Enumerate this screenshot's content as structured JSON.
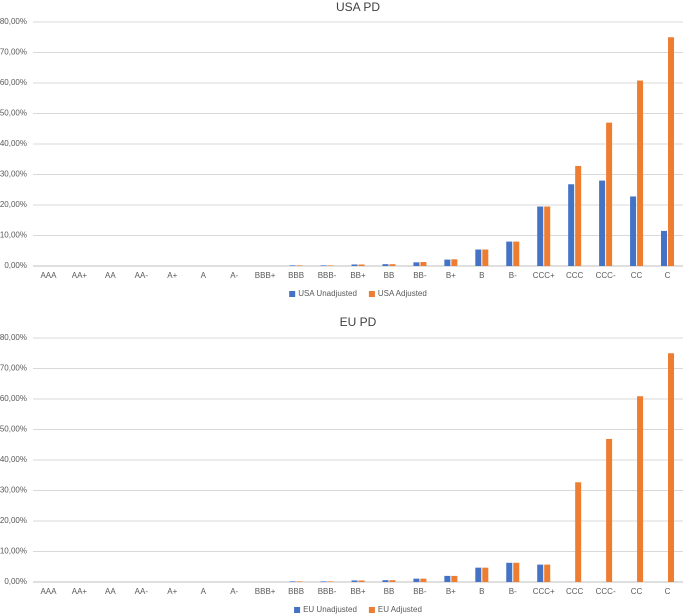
{
  "chart_data": [
    {
      "type": "bar",
      "title": "USA PD",
      "categories": [
        "AAA",
        "AA+",
        "AA",
        "AA-",
        "A+",
        "A",
        "A-",
        "BBB+",
        "BBB",
        "BBB-",
        "BB+",
        "BB",
        "BB-",
        "B+",
        "B",
        "B-",
        "CCC+",
        "CCC",
        "CCC-",
        "CC",
        "C"
      ],
      "series": [
        {
          "name": "USA Unadjusted",
          "color": "#4472c4",
          "values": [
            0,
            0,
            0,
            0,
            0,
            0,
            0,
            0,
            0.2,
            0.2,
            0.5,
            0.6,
            1.2,
            2.1,
            5.4,
            8.0,
            19.5,
            26.8,
            28.0,
            22.8,
            11.5
          ]
        },
        {
          "name": "USA Adjusted",
          "color": "#ed7d31",
          "values": [
            0,
            0,
            0,
            0,
            0,
            0,
            0,
            0,
            0.2,
            0.2,
            0.5,
            0.6,
            1.3,
            2.2,
            5.4,
            8.0,
            19.5,
            32.8,
            47.0,
            60.8,
            75.0
          ]
        }
      ],
      "ylim": [
        0,
        80
      ],
      "yticks": [
        {
          "value": 0,
          "label": "0,00%"
        },
        {
          "value": 10,
          "label": "10,00%"
        },
        {
          "value": 20,
          "label": "20,00%"
        },
        {
          "value": 30,
          "label": "30,00%"
        },
        {
          "value": 40,
          "label": "40,00%"
        },
        {
          "value": 50,
          "label": "50,00%"
        },
        {
          "value": 60,
          "label": "60,00%"
        },
        {
          "value": 70,
          "label": "70,00%"
        },
        {
          "value": 80,
          "label": "80,00%"
        }
      ],
      "grid": true,
      "legend": "bottom"
    },
    {
      "type": "bar",
      "title": "EU PD",
      "categories": [
        "AAA",
        "AA+",
        "AA",
        "AA-",
        "A+",
        "A",
        "A-",
        "BBB+",
        "BBB",
        "BBB-",
        "BB+",
        "BB",
        "BB-",
        "B+",
        "B",
        "B-",
        "CCC+",
        "CCC",
        "CCC-",
        "CC",
        "C"
      ],
      "series": [
        {
          "name": "EU Unadjusted",
          "color": "#4472c4",
          "values": [
            0,
            0,
            0,
            0,
            0,
            0,
            0,
            0,
            0.2,
            0.2,
            0.5,
            0.6,
            1.1,
            2.0,
            4.7,
            6.3,
            5.7,
            0,
            0,
            0,
            0
          ]
        },
        {
          "name": "EU Adjusted",
          "color": "#ed7d31",
          "values": [
            0,
            0,
            0,
            0,
            0,
            0,
            0,
            0,
            0.2,
            0.2,
            0.5,
            0.6,
            1.1,
            2.0,
            4.7,
            6.3,
            5.7,
            32.7,
            46.9,
            60.9,
            75.0
          ]
        }
      ],
      "ylim": [
        0,
        80
      ],
      "yticks": [
        {
          "value": 0,
          "label": "0,00%"
        },
        {
          "value": 10,
          "label": "10,00%"
        },
        {
          "value": 20,
          "label": "20,00%"
        },
        {
          "value": 30,
          "label": "30,00%"
        },
        {
          "value": 40,
          "label": "40,00%"
        },
        {
          "value": 50,
          "label": "50,00%"
        },
        {
          "value": 60,
          "label": "60,00%"
        },
        {
          "value": 70,
          "label": "70,00%"
        },
        {
          "value": 80,
          "label": "80,00%"
        }
      ],
      "grid": true,
      "legend": "bottom"
    }
  ]
}
